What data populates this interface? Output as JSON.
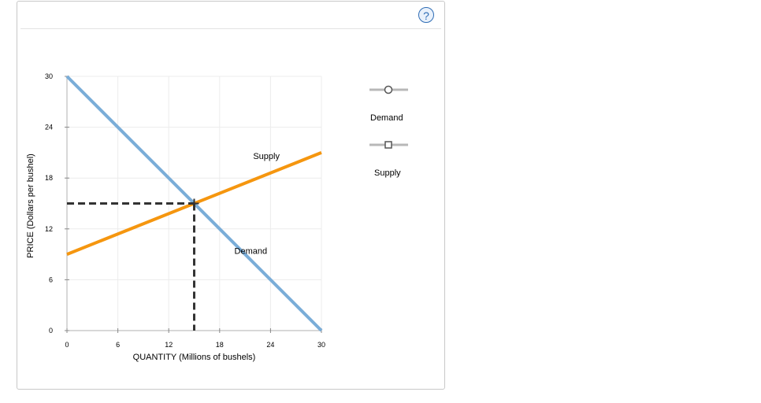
{
  "help": {
    "label": "?"
  },
  "colors": {
    "demand": "#7aadd8",
    "supply": "#f5960f",
    "grid": "#ececec",
    "dashed": "#333333",
    "legend_line": "#b8b8b8"
  },
  "legend": {
    "items": [
      {
        "label": "Demand",
        "icon": "circle-handle-icon"
      },
      {
        "label": "Supply",
        "icon": "square-handle-icon"
      }
    ]
  },
  "chart_data": {
    "type": "line",
    "xlabel": "QUANTITY (Millions of bushels)",
    "ylabel": "PRICE (Dollars per bushel)",
    "xlim": [
      0,
      30
    ],
    "ylim": [
      0,
      30
    ],
    "xticks": [
      0,
      6,
      12,
      18,
      24,
      30
    ],
    "yticks": [
      0,
      6,
      12,
      18,
      24,
      30
    ],
    "grid": true,
    "series": [
      {
        "name": "Demand",
        "x": [
          0,
          30
        ],
        "y": [
          30,
          0
        ]
      },
      {
        "name": "Supply",
        "x": [
          0,
          30
        ],
        "y": [
          9,
          21
        ]
      }
    ],
    "equilibrium": {
      "x": 15,
      "y": 15
    }
  }
}
